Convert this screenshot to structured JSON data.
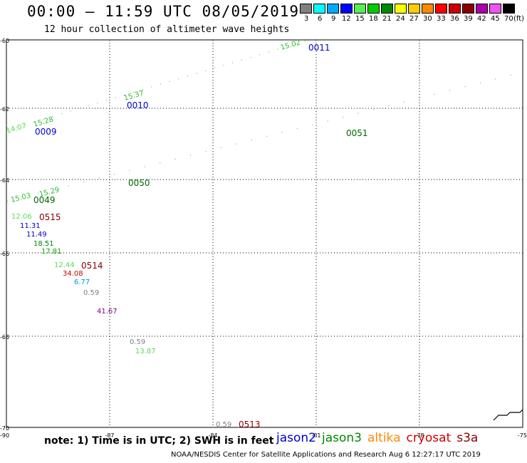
{
  "header": {
    "title": "00:00 – 11:59 UTC 08/05/2019",
    "subtitle": "12 hour collection of altimeter wave heights"
  },
  "colorbar": {
    "unit": "(ft)",
    "cells": [
      {
        "label": "3",
        "color": "#808080"
      },
      {
        "label": "6",
        "color": "#00ffff"
      },
      {
        "label": "9",
        "color": "#00aaff"
      },
      {
        "label": "12",
        "color": "#0000ff"
      },
      {
        "label": "15",
        "color": "#55ee55"
      },
      {
        "label": "18",
        "color": "#00cc00"
      },
      {
        "label": "21",
        "color": "#008800"
      },
      {
        "label": "24",
        "color": "#ffff00"
      },
      {
        "label": "27",
        "color": "#ffcc00"
      },
      {
        "label": "30",
        "color": "#ff8800"
      },
      {
        "label": "33",
        "color": "#ff0000"
      },
      {
        "label": "36",
        "color": "#cc0000"
      },
      {
        "label": "39",
        "color": "#880000"
      },
      {
        "label": "42",
        "color": "#aa00aa"
      },
      {
        "label": "45",
        "color": "#ee55ee"
      },
      {
        "label": "70",
        "color": "#000000"
      }
    ]
  },
  "map": {
    "x_ticks": [
      "-90",
      "-87",
      "-84",
      "-81",
      "-78",
      "-75"
    ],
    "y_ticks": [
      "-60",
      "-62",
      "-64",
      "-66",
      "-68",
      "-70"
    ],
    "track_labels": [
      {
        "text": "0011",
        "color": "#0000cc"
      },
      {
        "text": "0010",
        "color": "#0000cc"
      },
      {
        "text": "0009",
        "color": "#0000cc"
      },
      {
        "text": "0051",
        "color": "#006600"
      },
      {
        "text": "0050",
        "color": "#006600"
      },
      {
        "text": "0049",
        "color": "#006600"
      },
      {
        "text": "0515",
        "color": "#880000"
      },
      {
        "text": "0514",
        "color": "#880000"
      },
      {
        "text": "0513",
        "color": "#880000"
      }
    ],
    "swh_values": [
      {
        "text": "15.02",
        "color": "#33bb33"
      },
      {
        "text": "15.37",
        "color": "#33bb33"
      },
      {
        "text": "15.28",
        "color": "#33bb33"
      },
      {
        "text": "14.07",
        "color": "#55dd55"
      },
      {
        "text": "15.29",
        "color": "#33bb33"
      },
      {
        "text": "15.03",
        "color": "#33bb33"
      },
      {
        "text": "12.06",
        "color": "#55dd55"
      },
      {
        "text": "11.31",
        "color": "#0000cc"
      },
      {
        "text": "11.49",
        "color": "#0000cc"
      },
      {
        "text": "18.51",
        "color": "#008800"
      },
      {
        "text": "17.81",
        "color": "#00aa00"
      },
      {
        "text": "12.44",
        "color": "#55dd55"
      },
      {
        "text": "34.08",
        "color": "#cc0000"
      },
      {
        "text": "6.77",
        "color": "#0099dd"
      },
      {
        "text": "0.59",
        "color": "#808080"
      },
      {
        "text": "41.67",
        "color": "#880088"
      },
      {
        "text": "0.59",
        "color": "#808080"
      },
      {
        "text": "13.87",
        "color": "#55dd55"
      },
      {
        "text": "0.59",
        "color": "#808080"
      }
    ]
  },
  "footer": {
    "note": "note: 1) Time is in UTC; 2) SWH is in feet",
    "satellites": [
      {
        "name": "jason2",
        "color": "#0000cc"
      },
      {
        "name": "jason3",
        "color": "#008800"
      },
      {
        "name": "altika",
        "color": "#ff8800"
      },
      {
        "name": "cryosat",
        "color": "#cc0000"
      },
      {
        "name": "s3a",
        "color": "#880000"
      }
    ],
    "credit": "NOAA/NESDIS Center for Satellite Applications and Research    Aug  6 12:27:17 UTC 2019"
  }
}
